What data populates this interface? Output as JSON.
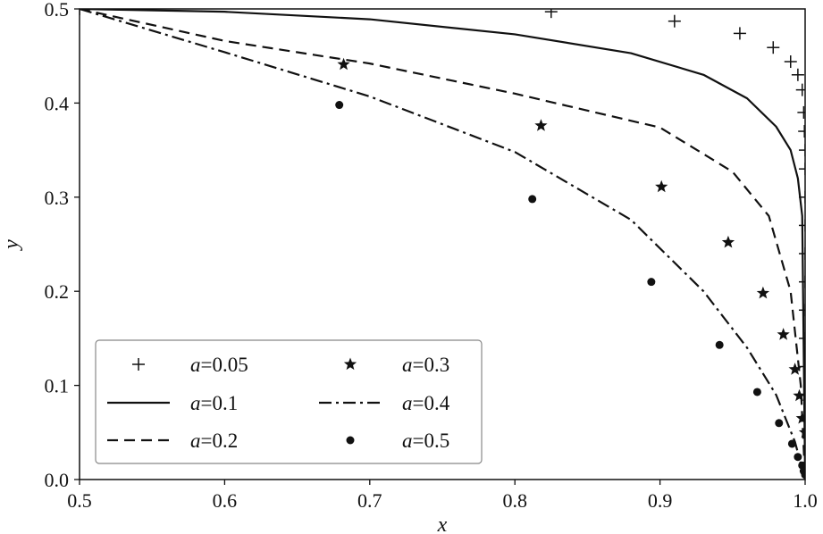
{
  "chart_data": {
    "type": "line",
    "xlabel": "x",
    "ylabel": "y",
    "xlim": [
      0.5,
      1.0
    ],
    "ylim": [
      0.0,
      0.5
    ],
    "xticks": [
      "0.5",
      "0.6",
      "0.7",
      "0.8",
      "0.9",
      "1.0"
    ],
    "yticks": [
      "0.0",
      "0.1",
      "0.2",
      "0.3",
      "0.4",
      "0.5"
    ],
    "grid": false,
    "legend_position": "lower-left",
    "series": [
      {
        "name": "0.05",
        "style": "plus",
        "x": [
          0.5,
          0.825,
          0.91,
          0.955,
          0.978,
          0.99,
          0.995,
          0.998,
          0.999,
          0.9995,
          1.0,
          1.0,
          1.0,
          1.0,
          1.0,
          1.0,
          1.0,
          1.0,
          1.0,
          1.0
        ],
        "y": [
          0.5,
          0.497,
          0.487,
          0.474,
          0.459,
          0.444,
          0.43,
          0.414,
          0.39,
          0.37,
          0.35,
          0.33,
          0.3,
          0.27,
          0.24,
          0.21,
          0.18,
          0.15,
          0.12,
          0.09
        ]
      },
      {
        "name": "0.1",
        "style": "solid",
        "x": [
          0.5,
          0.6,
          0.7,
          0.8,
          0.88,
          0.93,
          0.96,
          0.98,
          0.99,
          0.995,
          0.998,
          1.0
        ],
        "y": [
          0.5,
          0.497,
          0.489,
          0.473,
          0.453,
          0.43,
          0.405,
          0.375,
          0.35,
          0.32,
          0.28,
          0.0
        ]
      },
      {
        "name": "0.2",
        "style": "dashed",
        "x": [
          0.5,
          0.6,
          0.7,
          0.8,
          0.9,
          0.95,
          0.975,
          0.99,
          0.997,
          1.0
        ],
        "y": [
          0.5,
          0.466,
          0.442,
          0.41,
          0.374,
          0.327,
          0.28,
          0.2,
          0.1,
          0.0
        ]
      },
      {
        "name": "0.3",
        "style": "star",
        "x": [
          0.682,
          0.818,
          0.901,
          0.947,
          0.971,
          0.985,
          0.993,
          0.996,
          0.998,
          1.0
        ],
        "y": [
          0.441,
          0.376,
          0.311,
          0.252,
          0.198,
          0.154,
          0.117,
          0.089,
          0.065,
          0.05
        ]
      },
      {
        "name": "0.4",
        "style": "dashdot",
        "x": [
          0.5,
          0.6,
          0.7,
          0.8,
          0.88,
          0.93,
          0.96,
          0.98,
          0.993,
          1.0
        ],
        "y": [
          0.5,
          0.454,
          0.407,
          0.348,
          0.276,
          0.2,
          0.14,
          0.09,
          0.04,
          0.0
        ]
      },
      {
        "name": "0.5",
        "style": "dot",
        "x": [
          0.679,
          0.812,
          0.894,
          0.941,
          0.967,
          0.982,
          0.991,
          0.995,
          0.998,
          0.999,
          1.0
        ],
        "y": [
          0.398,
          0.298,
          0.21,
          0.143,
          0.093,
          0.06,
          0.038,
          0.024,
          0.015,
          0.009,
          0.005
        ]
      }
    ]
  }
}
